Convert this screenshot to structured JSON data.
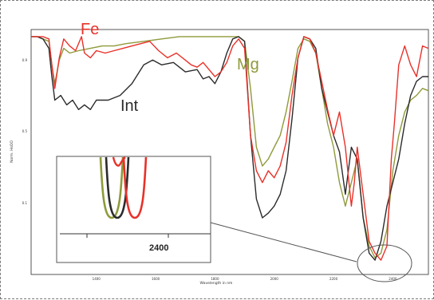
{
  "chart_data": {
    "type": "line",
    "xlabel": "Wavelength in nm",
    "ylabel": "Norm. HsOO",
    "x_tick_labels": [
      "1400",
      "1600",
      "1800",
      "2000",
      "2200",
      "2400"
    ],
    "y_tick_labels": [
      "0.9",
      "0.5",
      "0.1"
    ],
    "xlim": [
      1180,
      2520
    ],
    "colors": {
      "Fe": "#e8312a",
      "Mg": "#8f9a3a",
      "Int": "#2b2b2b"
    },
    "annotations": {
      "fe": "Fe",
      "mg": "Mg",
      "int": "Int"
    },
    "series": [
      {
        "name": "Fe",
        "x": [
          1180,
          1200,
          1220,
          1240,
          1250,
          1260,
          1275,
          1290,
          1310,
          1330,
          1350,
          1360,
          1380,
          1400,
          1430,
          1460,
          1490,
          1520,
          1550,
          1580,
          1610,
          1640,
          1670,
          1700,
          1720,
          1740,
          1760,
          1780,
          1800,
          1820,
          1840,
          1860,
          1880,
          1900,
          1920,
          1940,
          1960,
          1980,
          2000,
          2020,
          2040,
          2060,
          2080,
          2100,
          2120,
          2140,
          2160,
          2180,
          2200,
          2220,
          2240,
          2260,
          2270,
          2280,
          2300,
          2320,
          2340,
          2360,
          2380,
          2395,
          2405,
          2420,
          2440,
          2460,
          2480,
          2500,
          2520
        ],
        "y": [
          0.97,
          0.97,
          0.97,
          0.96,
          0.85,
          0.75,
          0.88,
          0.96,
          0.93,
          0.91,
          0.97,
          0.9,
          0.88,
          0.91,
          0.9,
          0.91,
          0.92,
          0.93,
          0.94,
          0.95,
          0.91,
          0.88,
          0.9,
          0.87,
          0.85,
          0.84,
          0.86,
          0.83,
          0.8,
          0.82,
          0.86,
          0.93,
          0.96,
          0.92,
          0.55,
          0.4,
          0.35,
          0.4,
          0.37,
          0.42,
          0.52,
          0.72,
          0.88,
          0.97,
          0.96,
          0.9,
          0.78,
          0.66,
          0.55,
          0.65,
          0.5,
          0.25,
          0.35,
          0.5,
          0.3,
          0.1,
          0.05,
          0.02,
          0.08,
          0.45,
          0.6,
          0.85,
          0.93,
          0.85,
          0.8,
          0.93,
          0.92
        ]
      },
      {
        "name": "Mg",
        "x": [
          1180,
          1200,
          1220,
          1240,
          1250,
          1260,
          1275,
          1290,
          1310,
          1340,
          1380,
          1420,
          1460,
          1500,
          1560,
          1620,
          1680,
          1740,
          1800,
          1840,
          1880,
          1900,
          1920,
          1940,
          1960,
          1980,
          2000,
          2020,
          2040,
          2060,
          2080,
          2100,
          2120,
          2140,
          2160,
          2180,
          2200,
          2220,
          2240,
          2260,
          2280,
          2300,
          2320,
          2340,
          2360,
          2380,
          2400,
          2420,
          2440,
          2460,
          2480,
          2500,
          2520
        ],
        "y": [
          0.97,
          0.97,
          0.96,
          0.95,
          0.85,
          0.77,
          0.87,
          0.92,
          0.9,
          0.91,
          0.92,
          0.93,
          0.93,
          0.94,
          0.95,
          0.96,
          0.97,
          0.97,
          0.97,
          0.97,
          0.97,
          0.95,
          0.75,
          0.5,
          0.42,
          0.45,
          0.5,
          0.55,
          0.65,
          0.78,
          0.92,
          0.96,
          0.95,
          0.9,
          0.75,
          0.6,
          0.5,
          0.35,
          0.25,
          0.35,
          0.45,
          0.2,
          0.08,
          0.03,
          0.05,
          0.15,
          0.4,
          0.55,
          0.65,
          0.7,
          0.72,
          0.75,
          0.74
        ]
      },
      {
        "name": "Int",
        "x": [
          1180,
          1200,
          1220,
          1240,
          1250,
          1260,
          1280,
          1300,
          1320,
          1340,
          1360,
          1380,
          1400,
          1440,
          1480,
          1520,
          1560,
          1590,
          1620,
          1660,
          1700,
          1740,
          1760,
          1780,
          1800,
          1820,
          1840,
          1860,
          1880,
          1900,
          1920,
          1940,
          1960,
          1980,
          2000,
          2020,
          2040,
          2060,
          2080,
          2100,
          2120,
          2140,
          2160,
          2180,
          2200,
          2220,
          2240,
          2260,
          2280,
          2300,
          2320,
          2340,
          2360,
          2380,
          2400,
          2420,
          2440,
          2460,
          2480,
          2500,
          2520
        ],
        "y": [
          0.97,
          0.97,
          0.96,
          0.92,
          0.8,
          0.7,
          0.72,
          0.68,
          0.7,
          0.66,
          0.68,
          0.66,
          0.7,
          0.7,
          0.72,
          0.77,
          0.85,
          0.87,
          0.85,
          0.86,
          0.82,
          0.83,
          0.79,
          0.8,
          0.77,
          0.82,
          0.9,
          0.96,
          0.97,
          0.95,
          0.55,
          0.28,
          0.2,
          0.22,
          0.25,
          0.3,
          0.4,
          0.62,
          0.88,
          0.97,
          0.96,
          0.92,
          0.75,
          0.65,
          0.55,
          0.48,
          0.3,
          0.5,
          0.45,
          0.2,
          0.05,
          0.02,
          0.1,
          0.25,
          0.35,
          0.45,
          0.6,
          0.72,
          0.78,
          0.8,
          0.8
        ]
      }
    ],
    "inset": {
      "x_tick_label": "2400"
    }
  }
}
